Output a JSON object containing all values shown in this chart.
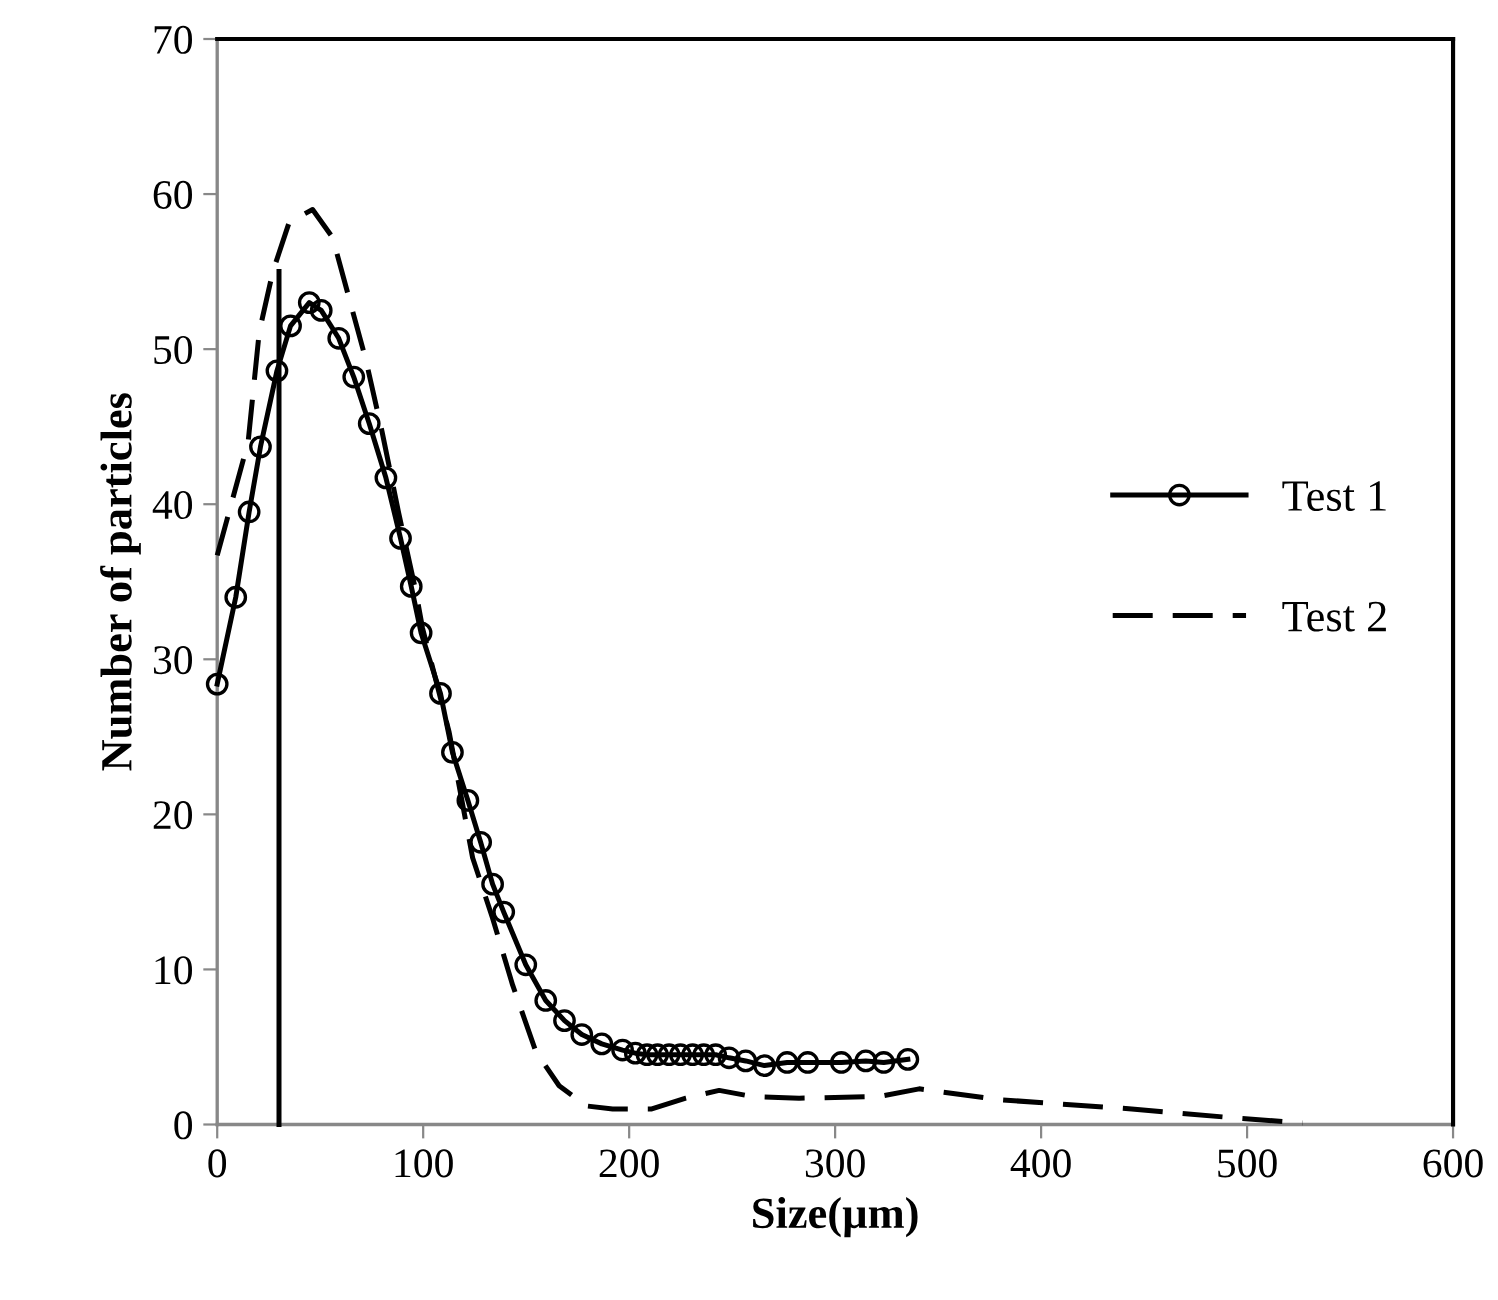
{
  "chart_data": {
    "type": "line",
    "xlabel": "Size(µm)",
    "ylabel": "Number of particles",
    "xlim": [
      0,
      600
    ],
    "xticks": [
      0,
      100,
      200,
      300,
      400,
      500,
      600
    ],
    "ylim": [
      0,
      70
    ],
    "yticks": [
      0,
      10,
      20,
      30,
      40,
      50,
      60,
      70
    ],
    "grid": false,
    "legend": "right",
    "series": [
      {
        "name": "Test 1",
        "color": "#000000",
        "marker": "circle",
        "line_style": "solid",
        "x": [
          0,
          9,
          15.5,
          21,
          29,
          35.6,
          44.7,
          50.5,
          59,
          66.3,
          73.8,
          81.9,
          89,
          94.2,
          99,
          108.4,
          114.2,
          121.7,
          127.9,
          133.7,
          139.1,
          149.8,
          159.5,
          168.6,
          177,
          186.7,
          196.8,
          203,
          208.7,
          213.8,
          219.4,
          224.9,
          230.8,
          236.2,
          242,
          248.5,
          256.6,
          265.7,
          276.7,
          286.7,
          303,
          314.9,
          323.6,
          335.3
        ],
        "values": [
          28.4,
          34.0,
          39.5,
          43.7,
          48.6,
          51.5,
          53.0,
          52.5,
          50.7,
          48.2,
          45.2,
          41.7,
          37.8,
          34.7,
          31.7,
          27.8,
          24.0,
          20.9,
          18.2,
          15.5,
          13.7,
          10.3,
          8.0,
          6.7,
          5.8,
          5.2,
          4.8,
          4.6,
          4.5,
          4.5,
          4.5,
          4.5,
          4.5,
          4.5,
          4.5,
          4.3,
          4.1,
          3.8,
          4.0,
          4.0,
          4.0,
          4.1,
          4.0,
          4.2
        ]
      },
      {
        "name": "Test 2",
        "color": "#000000",
        "marker": "none",
        "line_style": "dashed",
        "x": [
          0,
          15,
          20.4,
          27,
          35,
          46.3,
          56,
          64,
          72,
          80,
          88,
          96.4,
          99.7,
          112.6,
          124,
          133.7,
          143.4,
          154.7,
          166,
          179,
          192,
          211,
          227.5,
          243.7,
          260,
          282.5,
          321,
          340.8,
          379.6,
          444,
          496,
          526.9
        ],
        "values": [
          36.7,
          44,
          51.1,
          55,
          58.2,
          59.0,
          57.2,
          53.3,
          49.4,
          44.7,
          39.5,
          34.4,
          32.0,
          25.3,
          17.2,
          13.3,
          9.0,
          4.7,
          2.5,
          1.2,
          1.0,
          1.0,
          1.7,
          2.2,
          1.8,
          1.7,
          1.8,
          2.3,
          1.6,
          1.0,
          0.4,
          0.1
        ]
      },
      {
        "color": "#000000",
        "marker": "none",
        "line_style": "solid",
        "x": [
          30,
          30
        ],
        "values": [
          0,
          55
        ]
      }
    ]
  }
}
